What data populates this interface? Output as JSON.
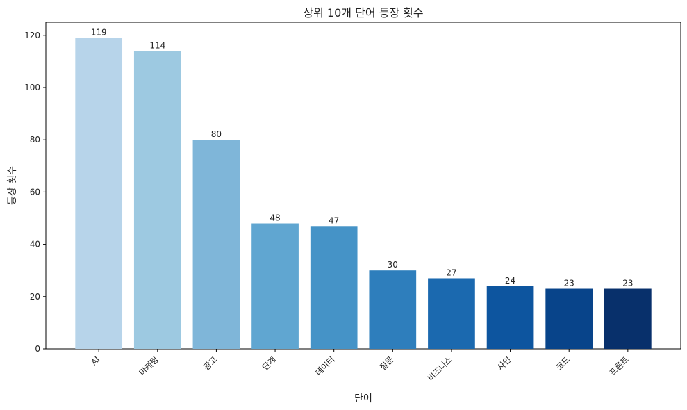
{
  "chart_data": {
    "type": "bar",
    "title": "상위 10개 단어 등장 횟수",
    "x_label": "단어",
    "y_label": "등장 횟수",
    "categories": [
      "AI",
      "마케팅",
      "광고",
      "단계",
      "데이터",
      "질문",
      "비즈니스",
      "사인",
      "코드",
      "프론트"
    ],
    "values": [
      119,
      114,
      80,
      48,
      47,
      30,
      27,
      24,
      23,
      23
    ],
    "colors": [
      "#b7d4ea",
      "#9dc9e1",
      "#7fb6d9",
      "#60a6d1",
      "#4593c7",
      "#2e7ebc",
      "#1b69af",
      "#0d559f",
      "#08448a",
      "#08306b"
    ],
    "ylim": [
      0,
      125
    ],
    "yticks": [
      0,
      20,
      40,
      60,
      80,
      100,
      120
    ],
    "grid": false
  }
}
